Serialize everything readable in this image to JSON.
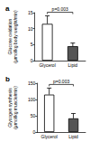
{
  "chart_data": [
    {
      "type": "bar",
      "title": "a",
      "y_label": "Glucose oxidation\n(μmol/kg body weight/min)",
      "categories": [
        "Glycerol",
        "Lipid"
      ],
      "values": [
        11.5,
        4.5
      ],
      "errors": [
        2.5,
        1.0
      ],
      "colors": [
        "#ffffff",
        "#555555"
      ],
      "ylim": [
        0,
        15
      ],
      "yticks": [
        0,
        5,
        10,
        15
      ],
      "grid": false,
      "annotation": "p=0.003"
    },
    {
      "type": "bar",
      "title": "b",
      "y_label": "Glycogen synthesis\n(μmol/kg muscle/min)",
      "categories": [
        "Glycerol",
        "Lipid"
      ],
      "values": [
        115,
        42
      ],
      "errors": [
        20,
        15
      ],
      "colors": [
        "#ffffff",
        "#555555"
      ],
      "ylim": [
        0,
        150
      ],
      "yticks": [
        0,
        50,
        100,
        150
      ],
      "grid": false,
      "annotation": "p=0.003"
    }
  ]
}
